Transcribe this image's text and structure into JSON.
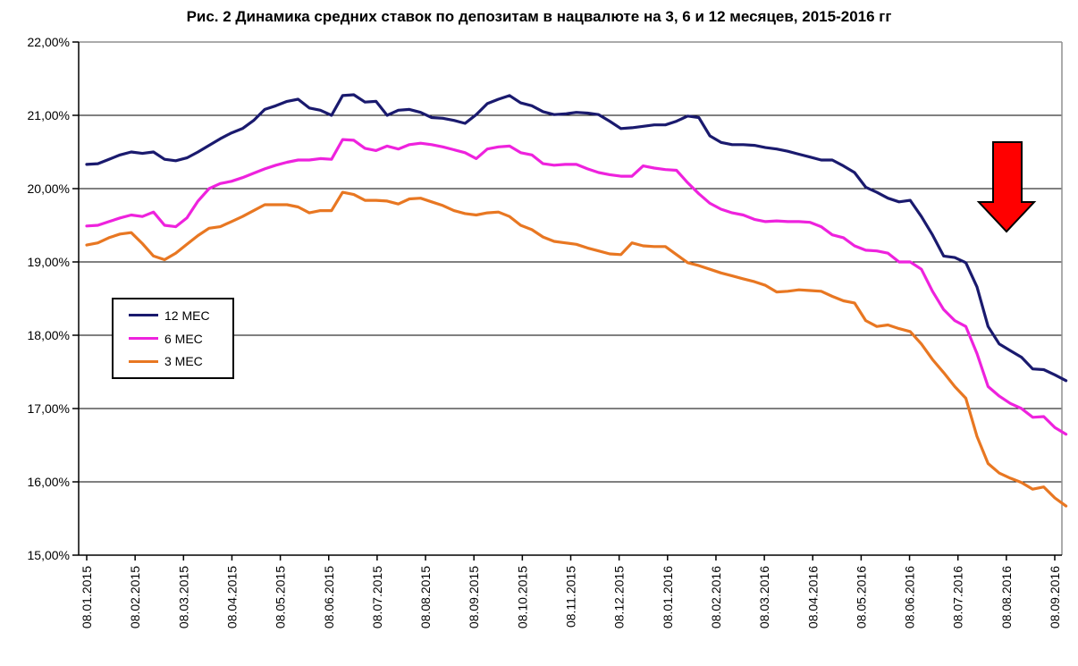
{
  "title": "Рис. 2 Динамика средних ставок по депозитам в нацвалюте на 3, 6 и 12 месяцев, 2015-2016 гг",
  "chart_data": {
    "type": "line",
    "title": "Рис. 2 Динамика средних ставок по депозитам в нацвалюте на 3, 6 и 12 месяцев, 2015-2016 гг",
    "xlabel": "",
    "ylabel": "",
    "ylim": [
      15,
      22
    ],
    "ytick_step": 1,
    "grid": "horizontal",
    "x_frequency": "weekly",
    "y_tick_labels": [
      "22,00%",
      "21,00%",
      "20,00%",
      "19,00%",
      "18,00%",
      "17,00%",
      "16,00%",
      "15,00%"
    ],
    "x_tick_labels": [
      "08.01.2015",
      "08.02.2015",
      "08.03.2015",
      "08.04.2015",
      "08.05.2015",
      "08.06.2015",
      "08.07.2015",
      "08.08.2015",
      "08.09.2015",
      "08.10.2015",
      "08.11.2015",
      "08.12.2015",
      "08.01.2016",
      "08.02.2016",
      "08.03.2016",
      "08.04.2016",
      "08.05.2016",
      "08.06.2016",
      "08.07.2016",
      "08.08.2016",
      "08.09.2016"
    ],
    "legend": {
      "position": "middle-left",
      "entries": [
        {
          "name": "12 МЕС",
          "color": "#1a1a6e"
        },
        {
          "name": "6 МЕС",
          "color": "#ee22dd"
        },
        {
          "name": "3 МЕС",
          "color": "#e87722"
        }
      ]
    },
    "series": [
      {
        "name": "12 МЕС",
        "color": "#1a1a6e",
        "values": [
          20.33,
          20.34,
          20.4,
          20.46,
          20.5,
          20.48,
          20.5,
          20.4,
          20.38,
          20.42,
          20.5,
          20.59,
          20.68,
          20.76,
          20.82,
          20.93,
          21.08,
          21.13,
          21.19,
          21.22,
          21.1,
          21.07,
          21.0,
          21.27,
          21.28,
          21.18,
          21.19,
          21.0,
          21.07,
          21.08,
          21.04,
          20.97,
          20.96,
          20.93,
          20.89,
          21.01,
          21.16,
          21.22,
          21.27,
          21.17,
          21.13,
          21.05,
          21.01,
          21.02,
          21.04,
          21.03,
          21.01,
          20.92,
          20.82,
          20.83,
          20.85,
          20.87,
          20.87,
          20.92,
          20.99,
          20.97,
          20.72,
          20.63,
          20.6,
          20.6,
          20.59,
          20.56,
          20.54,
          20.51,
          20.47,
          20.43,
          20.39,
          20.39,
          20.31,
          20.22,
          20.02,
          19.95,
          19.87,
          19.82,
          19.84,
          19.62,
          19.37,
          19.08,
          19.06,
          18.99,
          18.66,
          18.12,
          17.88,
          17.79,
          17.7,
          17.54,
          17.53,
          17.46,
          17.38
        ]
      },
      {
        "name": "6 МЕС",
        "color": "#ee22dd",
        "values": [
          19.49,
          19.5,
          19.55,
          19.6,
          19.64,
          19.62,
          19.68,
          19.5,
          19.48,
          19.6,
          19.83,
          20.0,
          20.07,
          20.1,
          20.15,
          20.21,
          20.27,
          20.32,
          20.36,
          20.39,
          20.39,
          20.41,
          20.4,
          20.67,
          20.66,
          20.55,
          20.52,
          20.58,
          20.54,
          20.6,
          20.62,
          20.6,
          20.57,
          20.53,
          20.49,
          20.41,
          20.54,
          20.57,
          20.58,
          20.49,
          20.46,
          20.34,
          20.32,
          20.33,
          20.33,
          20.27,
          20.22,
          20.19,
          20.17,
          20.17,
          20.31,
          20.28,
          20.26,
          20.25,
          20.08,
          19.93,
          19.8,
          19.72,
          19.67,
          19.64,
          19.58,
          19.55,
          19.56,
          19.55,
          19.55,
          19.54,
          19.48,
          19.37,
          19.33,
          19.22,
          19.16,
          19.15,
          19.12,
          19.0,
          19.0,
          18.9,
          18.6,
          18.35,
          18.2,
          18.12,
          17.75,
          17.3,
          17.17,
          17.07,
          17.0,
          16.88,
          16.89,
          16.74,
          16.65
        ]
      },
      {
        "name": "3 МЕС",
        "color": "#e87722",
        "values": [
          19.23,
          19.26,
          19.33,
          19.38,
          19.4,
          19.25,
          19.08,
          19.03,
          19.12,
          19.24,
          19.36,
          19.46,
          19.48,
          19.55,
          19.62,
          19.7,
          19.78,
          19.78,
          19.78,
          19.75,
          19.67,
          19.7,
          19.7,
          19.95,
          19.92,
          19.84,
          19.84,
          19.83,
          19.79,
          19.86,
          19.87,
          19.82,
          19.77,
          19.7,
          19.66,
          19.64,
          19.67,
          19.68,
          19.62,
          19.5,
          19.44,
          19.34,
          19.28,
          19.26,
          19.24,
          19.19,
          19.15,
          19.11,
          19.1,
          19.26,
          19.22,
          19.21,
          19.21,
          19.1,
          18.99,
          18.95,
          18.9,
          18.85,
          18.81,
          18.77,
          18.73,
          18.68,
          18.59,
          18.6,
          18.62,
          18.61,
          18.6,
          18.53,
          18.47,
          18.44,
          18.2,
          18.12,
          18.14,
          18.09,
          18.05,
          17.88,
          17.67,
          17.49,
          17.3,
          17.14,
          16.62,
          16.25,
          16.12,
          16.05,
          15.99,
          15.9,
          15.93,
          15.78,
          15.67
        ]
      }
    ],
    "annotation": {
      "shape": "down-arrow",
      "fill": "#ff0000",
      "outline": "#000000",
      "note": "red arrow pointing down over the rate decline above the 08.08.2016–08.09.2016 region"
    }
  }
}
